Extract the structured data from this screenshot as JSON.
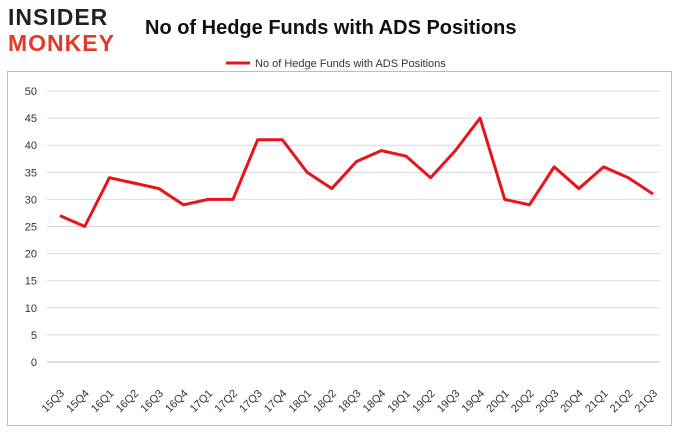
{
  "logo": {
    "line1": "INSIDER",
    "line2": "MONKEY"
  },
  "colors": {
    "series": "#e8141b",
    "grid": "#d9d9d9",
    "logo_accent": "#e03b2a"
  },
  "chart_data": {
    "type": "line",
    "title": "No of Hedge Funds with ADS Positions",
    "xlabel": "",
    "ylabel": "",
    "ylim": [
      0,
      50
    ],
    "yticks": [
      0,
      5,
      10,
      15,
      20,
      25,
      30,
      35,
      40,
      45,
      50
    ],
    "grid": true,
    "legend": "top-center",
    "categories": [
      "15Q3",
      "15Q4",
      "16Q1",
      "16Q2",
      "16Q3",
      "16Q4",
      "17Q1",
      "17Q2",
      "17Q3",
      "17Q4",
      "18Q1",
      "18Q2",
      "18Q3",
      "18Q4",
      "19Q1",
      "19Q2",
      "19Q3",
      "19Q4",
      "20Q1",
      "20Q2",
      "20Q3",
      "20Q4",
      "21Q1",
      "21Q2",
      "21Q3"
    ],
    "series": [
      {
        "name": "No of Hedge Funds with ADS Positions",
        "values": [
          27,
          25,
          34,
          33,
          32,
          29,
          30,
          30,
          41,
          41,
          35,
          32,
          37,
          39,
          38,
          34,
          39,
          45,
          30,
          29,
          36,
          32,
          36,
          34,
          31
        ]
      }
    ]
  }
}
